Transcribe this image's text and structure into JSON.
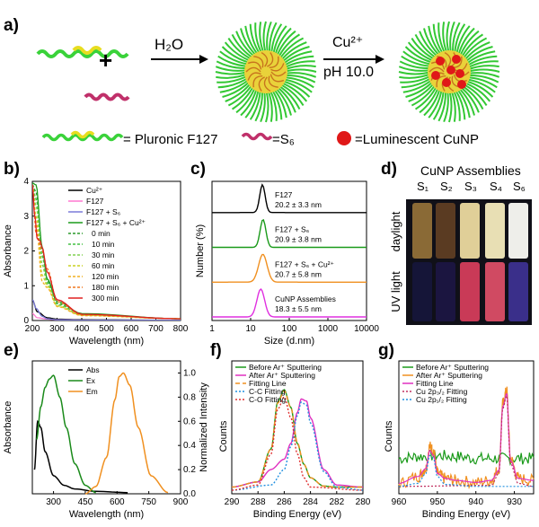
{
  "panel_labels": {
    "a": "a)",
    "b": "b)",
    "c": "c)",
    "d": "d)",
    "e": "e)",
    "f": "f)",
    "g": "g)"
  },
  "panel_a": {
    "step1": "H₂O",
    "step2_ion": "Cu²⁺",
    "step2_ph": "pH 10.0",
    "plus": "+",
    "legend": [
      "= Pluronic F127",
      "=S₆",
      "=Luminescent CuNP"
    ]
  },
  "panel_d": {
    "title": "CuNP Assemblies",
    "samples": [
      "S₁",
      "S₂",
      "S₃",
      "S₄",
      "S₆"
    ],
    "rows": [
      "daylight",
      "UV light"
    ],
    "daylight_colors": [
      "#8a6a36",
      "#5a3b22",
      "#e0cf98",
      "#e8dfb4",
      "#eeeeea"
    ],
    "uv_colors": [
      "#151538",
      "#1b1540",
      "#c93a57",
      "#d04a62",
      "#3a2f8a"
    ]
  },
  "chart_data": [
    {
      "panel": "b",
      "type": "line",
      "xlabel": "Wavelength (nm)",
      "ylabel": "Absorbance",
      "xlim": [
        200,
        800
      ],
      "ylim": [
        0,
        4
      ],
      "xticks": [
        200,
        300,
        400,
        500,
        600,
        700,
        800
      ],
      "yticks": [
        0,
        1,
        2,
        3,
        4
      ],
      "legend_placement": "top-right",
      "series": [
        {
          "name": "Cu²⁺",
          "color": "#000000",
          "dash": "",
          "x": [
            200,
            220,
            260,
            300,
            400,
            800
          ],
          "y": [
            0.6,
            0.25,
            0.08,
            0.04,
            0.02,
            0.01
          ]
        },
        {
          "name": "F127",
          "color": "#ff77d0",
          "dash": "",
          "x": [
            200,
            220,
            260,
            300,
            400,
            800
          ],
          "y": [
            0.2,
            0.08,
            0.04,
            0.02,
            0.01,
            0.01
          ]
        },
        {
          "name": "F127 + S₆",
          "color": "#7a7ad8",
          "dash": "",
          "x": [
            200,
            215,
            240,
            260,
            300,
            400,
            800
          ],
          "y": [
            0.6,
            0.35,
            0.12,
            0.05,
            0.02,
            0.01,
            0.01
          ]
        },
        {
          "name": "F127 + S₆ + Cu²⁺",
          "color": "#1a9a1a",
          "dash": "",
          "x": [
            200,
            215,
            240,
            260,
            300,
            400,
            800
          ],
          "y": [
            3.95,
            3.9,
            2.1,
            1.2,
            0.55,
            0.2,
            0.05
          ]
        },
        {
          "name": "0 min",
          "color": "#2a9a2a",
          "dash": "3,2",
          "x": [
            200,
            215,
            240,
            260,
            300,
            400,
            800
          ],
          "y": [
            3.9,
            3.7,
            2.0,
            1.15,
            0.5,
            0.18,
            0.05
          ]
        },
        {
          "name": "10 min",
          "color": "#44c044",
          "dash": "3,2",
          "x": [
            200,
            215,
            240,
            260,
            300,
            400,
            800
          ],
          "y": [
            3.9,
            3.5,
            1.85,
            1.1,
            0.48,
            0.17,
            0.05
          ]
        },
        {
          "name": "30 min",
          "color": "#80d050",
          "dash": "3,2",
          "x": [
            200,
            215,
            240,
            260,
            300,
            400,
            800
          ],
          "y": [
            3.9,
            3.3,
            1.6,
            1.05,
            0.45,
            0.16,
            0.05
          ]
        },
        {
          "name": "60 min",
          "color": "#c8d020",
          "dash": "3,2",
          "x": [
            200,
            215,
            240,
            260,
            300,
            400,
            800
          ],
          "y": [
            3.9,
            3.0,
            1.3,
            1.0,
            0.42,
            0.15,
            0.05
          ]
        },
        {
          "name": "120 min",
          "color": "#f0b020",
          "dash": "3,2",
          "x": [
            200,
            215,
            240,
            260,
            300,
            400,
            800
          ],
          "y": [
            3.9,
            2.8,
            1.1,
            0.95,
            0.4,
            0.14,
            0.05
          ]
        },
        {
          "name": "180 min",
          "color": "#f07820",
          "dash": "3,2",
          "x": [
            200,
            215,
            240,
            260,
            300,
            400,
            800
          ],
          "y": [
            3.9,
            2.5,
            2.0,
            1.5,
            0.55,
            0.16,
            0.05
          ]
        },
        {
          "name": "300 min",
          "color": "#e02020",
          "dash": "",
          "x": [
            200,
            210,
            220,
            230,
            240,
            260,
            300,
            400,
            800
          ],
          "y": [
            3.9,
            3.0,
            2.35,
            2.3,
            2.1,
            1.4,
            0.6,
            0.18,
            0.05
          ]
        }
      ]
    },
    {
      "panel": "c",
      "type": "line",
      "xlabel": "Size (d.nm)",
      "ylabel": "Number (%)",
      "xscale": "log",
      "xlim": [
        1,
        10000
      ],
      "xticks": [
        1,
        10,
        100,
        1000,
        10000
      ],
      "stacked": true,
      "series": [
        {
          "name": "F127",
          "value": "20.2 ± 3.3 nm",
          "color": "#000000",
          "center": 20.2,
          "width": 0.07
        },
        {
          "name": "F127 + S₆",
          "value": "20.9 ± 3.8 nm",
          "color": "#1a9a1a",
          "center": 20.9,
          "width": 0.075
        },
        {
          "name": "F127 + S₆ + Cu²⁺",
          "value": "20.7 ± 5.8 nm",
          "color": "#f09020",
          "center": 20.7,
          "width": 0.11
        },
        {
          "name": "CuNP Assemblies",
          "value": "18.3 ± 5.5 nm",
          "color": "#e030e0",
          "center": 18.3,
          "width": 0.1
        }
      ]
    },
    {
      "panel": "e",
      "type": "line",
      "xlabel": "Wavelength (nm)",
      "ylabel": "Absorbance",
      "y2label": "Normalized Intensity",
      "xlim": [
        200,
        900
      ],
      "xticks": [
        300,
        450,
        600,
        750,
        900
      ],
      "y2lim": [
        0,
        1.1
      ],
      "y2ticks": [
        0.0,
        0.2,
        0.4,
        0.6,
        0.8,
        1.0
      ],
      "legend_placement": "top-left",
      "series": [
        {
          "name": "Abs",
          "color": "#000000",
          "x": [
            210,
            225,
            240,
            260,
            300,
            350,
            400,
            500,
            650
          ],
          "y": [
            0.2,
            0.6,
            0.55,
            0.35,
            0.15,
            0.07,
            0.04,
            0.02,
            0.01
          ]
        },
        {
          "name": "Ex",
          "color": "#1a8a1a",
          "x": [
            220,
            240,
            260,
            280,
            300,
            330,
            360,
            400,
            450,
            500
          ],
          "y": [
            0.45,
            0.72,
            0.88,
            0.95,
            0.98,
            0.8,
            0.55,
            0.25,
            0.07,
            0.01
          ]
        },
        {
          "name": "Em",
          "color": "#f09020",
          "x": [
            450,
            500,
            550,
            590,
            610,
            630,
            660,
            700,
            760,
            840
          ],
          "y": [
            0.0,
            0.06,
            0.3,
            0.78,
            0.97,
            1.0,
            0.9,
            0.55,
            0.15,
            0.01
          ]
        }
      ]
    },
    {
      "panel": "f",
      "type": "line",
      "xlabel": "Binding Energy (eV)",
      "ylabel": "Counts",
      "xlim": [
        290,
        280
      ],
      "xticks": [
        290,
        288,
        286,
        284,
        282,
        280
      ],
      "legend_placement": "top",
      "series": [
        {
          "name": "Before Ar⁺ Sputtering",
          "color": "#1a9a1a",
          "x": [
            290,
            288,
            287,
            286.5,
            286,
            285.5,
            285,
            284.5,
            284,
            283,
            282,
            280
          ],
          "y": [
            0.03,
            0.08,
            0.4,
            0.85,
            0.97,
            0.8,
            0.45,
            0.25,
            0.12,
            0.04,
            0.03,
            0.03
          ]
        },
        {
          "name": "After Ar⁺ Sputtering",
          "color": "#e030c0",
          "x": [
            290,
            288,
            287,
            286,
            285.5,
            285,
            284.7,
            284.3,
            284,
            283,
            282,
            280
          ],
          "y": [
            0.03,
            0.08,
            0.2,
            0.3,
            0.45,
            0.75,
            0.88,
            0.86,
            0.7,
            0.2,
            0.05,
            0.03
          ]
        },
        {
          "name": "Fitting Line",
          "color": "#f09020",
          "dash": "5,3",
          "x": [
            290,
            288,
            287,
            286.5,
            286,
            285.5,
            285,
            284.5,
            284,
            283,
            282,
            280
          ],
          "y": [
            0.03,
            0.08,
            0.4,
            0.84,
            0.96,
            0.8,
            0.46,
            0.25,
            0.12,
            0.04,
            0.03,
            0.03
          ]
        },
        {
          "name": "C-C Fitting",
          "color": "#2090e0",
          "dash": "2,2",
          "x": [
            290,
            287,
            286,
            285.5,
            285,
            284.7,
            284.3,
            284,
            283,
            282,
            280
          ],
          "y": [
            0.0,
            0.05,
            0.2,
            0.42,
            0.72,
            0.85,
            0.82,
            0.65,
            0.18,
            0.03,
            0.0
          ]
        },
        {
          "name": "C-O Fitting",
          "color": "#e03030",
          "dash": "2,2",
          "x": [
            290,
            288,
            287,
            286.5,
            286,
            285.5,
            285,
            284.5,
            284,
            280
          ],
          "y": [
            0.0,
            0.05,
            0.35,
            0.78,
            0.9,
            0.7,
            0.35,
            0.12,
            0.03,
            0.0
          ]
        }
      ]
    },
    {
      "panel": "g",
      "type": "line",
      "xlabel": "Binding Energy (eV)",
      "ylabel": "Counts",
      "xlim": [
        960,
        925
      ],
      "xticks": [
        960,
        950,
        940,
        930
      ],
      "legend_placement": "top",
      "series": [
        {
          "name": "Before Ar⁺ Sputtering",
          "color": "#1a9a1a",
          "noisy": true,
          "x": [
            960,
            955,
            950,
            945,
            940,
            935,
            930,
            925
          ],
          "y": [
            0.3,
            0.32,
            0.33,
            0.32,
            0.3,
            0.3,
            0.3,
            0.3
          ]
        },
        {
          "name": "After Ar⁺ Sputtering",
          "color": "#f09020",
          "noisy": true,
          "x": [
            960,
            955,
            953,
            952,
            951,
            950,
            948,
            945,
            940,
            936,
            934,
            933,
            932,
            931,
            929,
            925
          ],
          "y": [
            0.05,
            0.12,
            0.2,
            0.42,
            0.38,
            0.15,
            0.1,
            0.08,
            0.06,
            0.08,
            0.2,
            0.85,
            0.98,
            0.3,
            0.1,
            0.08
          ]
        },
        {
          "name": "Fitting Line",
          "color": "#e030c0",
          "x": [
            960,
            955,
            953,
            952,
            951,
            950,
            948,
            945,
            940,
            936,
            934,
            933,
            932,
            931,
            929,
            925
          ],
          "y": [
            0.05,
            0.12,
            0.2,
            0.38,
            0.33,
            0.15,
            0.1,
            0.08,
            0.06,
            0.08,
            0.18,
            0.82,
            0.95,
            0.28,
            0.1,
            0.08
          ]
        },
        {
          "name": "Cu 2p₃/₂ Fitting",
          "color": "#c03060",
          "dash": "2,2",
          "x": [
            960,
            936,
            934,
            933,
            932,
            931,
            929,
            925
          ],
          "y": [
            0.02,
            0.03,
            0.15,
            0.8,
            0.93,
            0.25,
            0.05,
            0.02
          ]
        },
        {
          "name": "Cu 2p₁/₂ Fitting",
          "color": "#2090e0",
          "dash": "2,2",
          "x": [
            960,
            955,
            953,
            952,
            951,
            950,
            948,
            940,
            925
          ],
          "y": [
            0.02,
            0.05,
            0.15,
            0.33,
            0.3,
            0.12,
            0.04,
            0.02,
            0.02
          ]
        }
      ]
    }
  ]
}
